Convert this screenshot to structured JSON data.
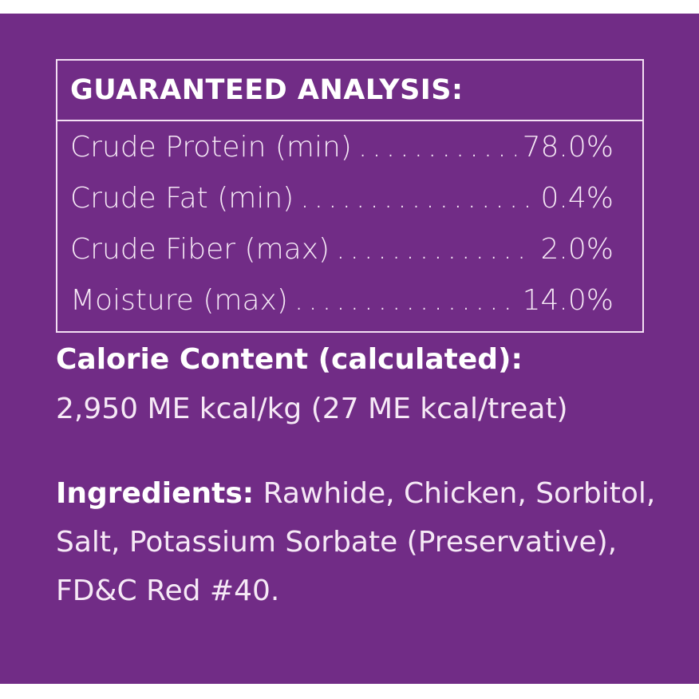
{
  "analysis": {
    "title": "GUARANTEED ANALYSIS:",
    "rows": [
      {
        "label": "Crude Protein (min)",
        "value": "78.0%"
      },
      {
        "label": "Crude Fat (min)",
        "value": "0.4%"
      },
      {
        "label": "Crude Fiber (max)",
        "value": "2.0%"
      },
      {
        "label": "Moisture (max)",
        "value": "14.0%"
      }
    ]
  },
  "calorie": {
    "heading": "Calorie Content (calculated):",
    "value": "2,950 ME kcal/kg (27 ME kcal/treat)"
  },
  "ingredients": {
    "heading": "Ingredients:",
    "text": "Rawhide, Chicken, Sorbitol, Salt, Potassium Sorbate (Preservative), FD&C Red #40."
  },
  "colors": {
    "background": "#712c86",
    "text": "#f6e9f6"
  }
}
